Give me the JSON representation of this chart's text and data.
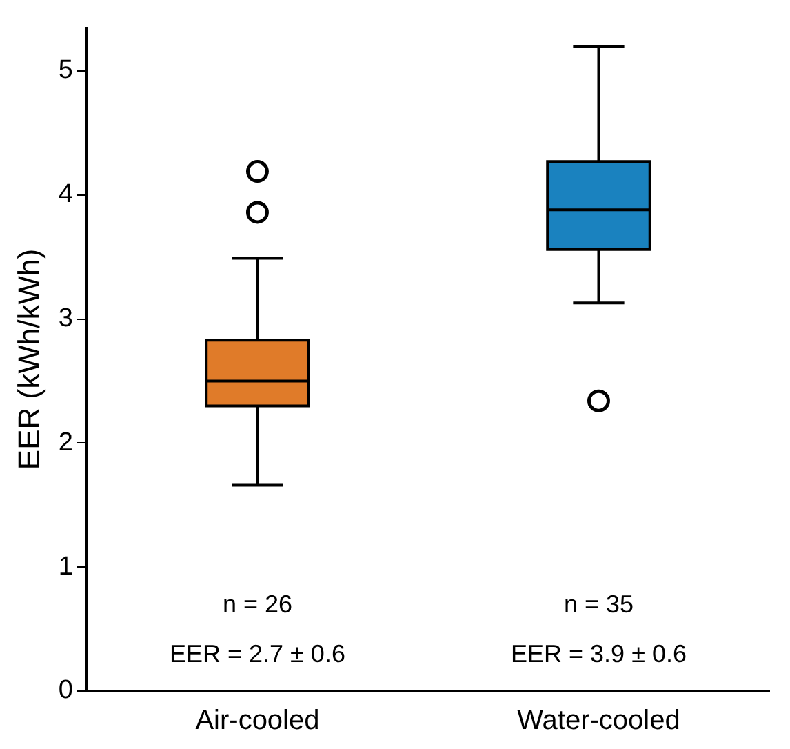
{
  "chart_data": {
    "type": "box",
    "ylabel": "EER (kWh/kWh)",
    "categories": [
      "Air-cooled",
      "Water-cooled"
    ],
    "colors": [
      "#e07b29",
      "#1a82bf"
    ],
    "boxes": [
      {
        "low": 1.66,
        "q1": 2.3,
        "median": 2.5,
        "q3": 2.83,
        "high": 3.49,
        "outliers": [
          3.86,
          4.19
        ]
      },
      {
        "low": 3.13,
        "q1": 3.56,
        "median": 3.88,
        "q3": 4.27,
        "high": 5.2,
        "outliers": [
          2.34
        ]
      }
    ],
    "ylim": [
      0,
      5.35
    ],
    "yticks": [
      0,
      1,
      2,
      3,
      4,
      5
    ],
    "grid": false,
    "legend": false,
    "annotations": [
      "n = 26",
      "EER = 2.7 ± 0.6",
      "n = 35",
      "EER = 3.9 ± 0.6"
    ]
  }
}
